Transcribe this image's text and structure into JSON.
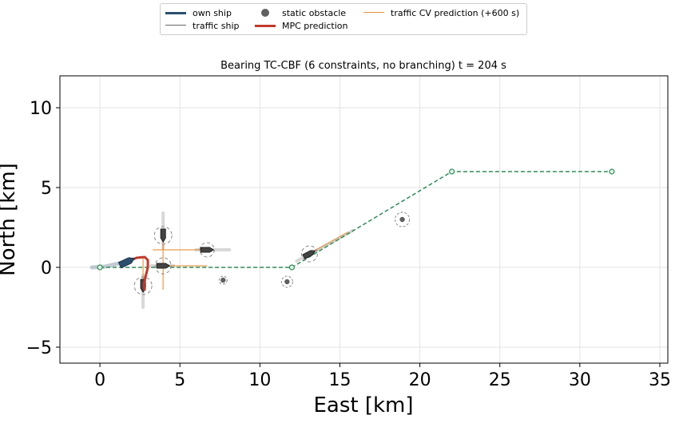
{
  "legend": {
    "items": [
      {
        "label": "own ship",
        "kind": "line",
        "color": "#2b4f6e",
        "width": 3
      },
      {
        "label": "traffic ship",
        "kind": "line",
        "color": "#666666",
        "width": 1.5
      },
      {
        "label": "static obstacle",
        "kind": "marker",
        "color": "#606060"
      },
      {
        "label": "MPC prediction",
        "kind": "line",
        "color": "#c0392b",
        "width": 3
      },
      {
        "label": "traffic CV prediction (+600 s)",
        "kind": "line",
        "color": "#e8913a",
        "width": 1.5
      }
    ]
  },
  "chart_data": {
    "type": "scatter",
    "title": "Bearing TC-CBF (6 constraints, no branching)   t =   204 s",
    "xlabel": "East [km]",
    "ylabel": "North [km]",
    "xlim": [
      -2.5,
      35.5
    ],
    "ylim": [
      -6,
      12
    ],
    "xticks": [
      0,
      5,
      10,
      15,
      20,
      25,
      30,
      35
    ],
    "yticks": [
      -5,
      0,
      5,
      10
    ],
    "xtick_labels": [
      "0",
      "5",
      "10",
      "15",
      "20",
      "25",
      "30",
      "35"
    ],
    "ytick_labels": [
      "−5",
      "0",
      "5",
      "10"
    ],
    "grid": true,
    "legend_position": "top-center, outside plot",
    "colors": {
      "waypoints": "#2e8b57",
      "own_ship": "#2b4f6e",
      "mpc": "#c0392b",
      "traffic": "#444444",
      "traffic_trail": "#b8b8b8",
      "traffic_cv": "#e8913a",
      "static": "#606060",
      "safety_circle": "#888888"
    },
    "waypoint_path": [
      [
        0,
        0
      ],
      [
        12,
        0
      ],
      [
        22,
        6
      ],
      [
        32,
        6
      ]
    ],
    "own_ship": {
      "trail": [
        [
          -0.5,
          0.0
        ],
        [
          0.3,
          0.05
        ],
        [
          1.0,
          0.2
        ],
        [
          1.6,
          0.35
        ]
      ],
      "position": [
        1.7,
        0.35
      ],
      "heading_deg": 65
    },
    "mpc_prediction": [
      [
        1.7,
        0.35
      ],
      [
        2.3,
        0.6
      ],
      [
        2.8,
        0.65
      ],
      [
        3.0,
        0.45
      ],
      [
        3.0,
        0.0
      ],
      [
        2.85,
        -0.6
      ],
      [
        2.75,
        -1.1
      ],
      [
        2.8,
        -1.4
      ]
    ],
    "static_obstacles": [
      {
        "x": 7.7,
        "y": -0.8,
        "r": 0.25
      },
      {
        "x": 11.7,
        "y": -0.9,
        "r": 0.35
      },
      {
        "x": 18.9,
        "y": 3.0,
        "r": 0.45
      }
    ],
    "traffic_ships": [
      {
        "x": 2.7,
        "y": -1.15,
        "heading_deg": 180,
        "r": 0.55,
        "trail": [
          [
            2.7,
            -2.5
          ],
          [
            2.7,
            -0.5
          ]
        ],
        "cv": [
          [
            2.7,
            -1.15
          ],
          [
            2.7,
            0.7
          ]
        ]
      },
      {
        "x": 3.95,
        "y": 2.0,
        "heading_deg": 180,
        "r": 0.55,
        "trail": [
          [
            3.95,
            1.2
          ],
          [
            3.95,
            3.4
          ]
        ],
        "cv": [
          [
            3.95,
            2.0
          ],
          [
            3.95,
            -1.4
          ]
        ]
      },
      {
        "x": 3.95,
        "y": 0.1,
        "heading_deg": 90,
        "r": 0.5,
        "trail": [
          [
            3.2,
            0.1
          ],
          [
            4.6,
            0.1
          ]
        ],
        "cv": [
          [
            3.95,
            0.1
          ],
          [
            6.7,
            0.1
          ]
        ]
      },
      {
        "x": 6.7,
        "y": 1.1,
        "heading_deg": 90,
        "r": 0.45,
        "trail": [
          [
            6.0,
            1.1
          ],
          [
            8.1,
            1.1
          ]
        ],
        "cv": [
          [
            6.7,
            1.1
          ],
          [
            3.3,
            1.1
          ]
        ]
      },
      {
        "x": 13.1,
        "y": 0.85,
        "heading_deg": 62,
        "r": 0.5,
        "trail": [
          [
            12.3,
            0.4
          ],
          [
            15.8,
            2.3
          ]
        ],
        "cv": [
          [
            13.1,
            0.85
          ],
          [
            15.5,
            2.2
          ]
        ]
      }
    ]
  }
}
